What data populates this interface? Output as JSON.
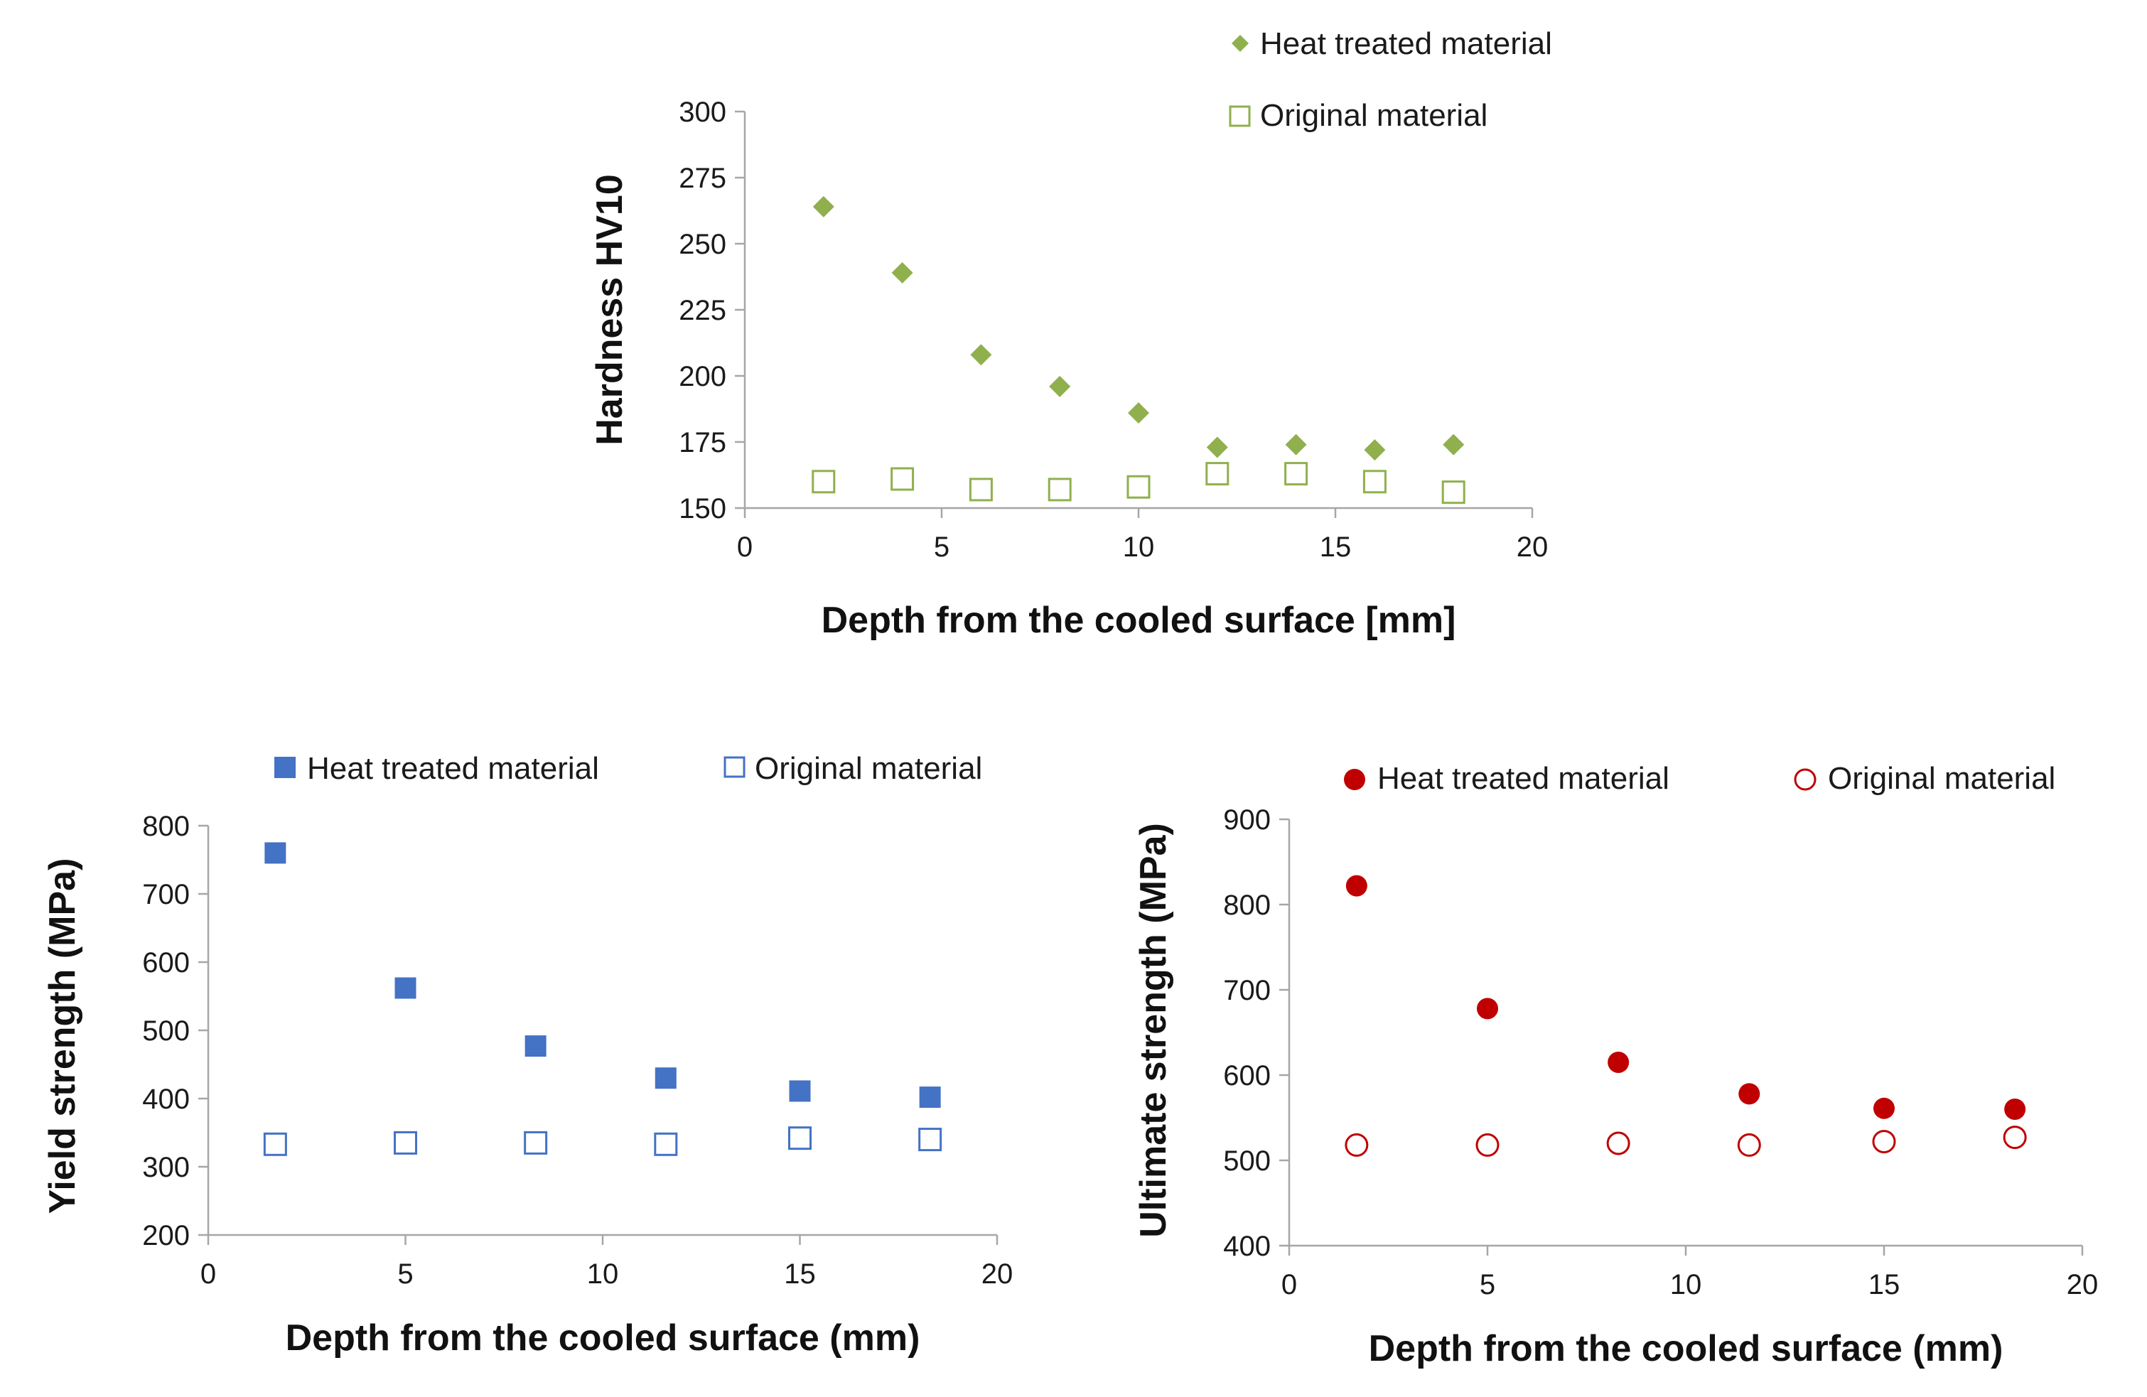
{
  "chart_data": [
    {
      "id": "hardness",
      "type": "scatter",
      "xlabel": "Depth from the cooled surface [mm]",
      "ylabel": "Hardness HV10",
      "xlim": [
        0,
        20
      ],
      "ylim": [
        150,
        300
      ],
      "xticks": [
        "0",
        "5",
        "10",
        "15",
        "20"
      ],
      "yticks": [
        "150",
        "175",
        "200",
        "225",
        "250",
        "275",
        "300"
      ],
      "grid": false,
      "legend_position": "top-right",
      "series": [
        {
          "name": "Heat treated material",
          "marker": "diamond",
          "filled": true,
          "color": "#8fb04d",
          "x": [
            2,
            4,
            6,
            8,
            10,
            12,
            14,
            16,
            18
          ],
          "y": [
            264,
            239,
            208,
            196,
            186,
            173,
            174,
            172,
            174
          ]
        },
        {
          "name": "Original material",
          "marker": "square",
          "filled": false,
          "color": "#8fb04d",
          "x": [
            2,
            4,
            6,
            8,
            10,
            12,
            14,
            16,
            18
          ],
          "y": [
            160,
            161,
            157,
            157,
            158,
            163,
            163,
            160,
            156
          ]
        }
      ]
    },
    {
      "id": "yield",
      "type": "scatter",
      "xlabel": "Depth from the cooled surface (mm)",
      "ylabel": "Yield strength (MPa)",
      "xlim": [
        0,
        20
      ],
      "ylim": [
        200,
        800
      ],
      "xticks": [
        "0",
        "5",
        "10",
        "15",
        "20"
      ],
      "yticks": [
        "200",
        "300",
        "400",
        "500",
        "600",
        "700",
        "800"
      ],
      "grid": false,
      "legend_position": "top",
      "series": [
        {
          "name": "Heat treated material",
          "marker": "square",
          "filled": true,
          "color": "#4472c4",
          "x": [
            1.7,
            5.0,
            8.3,
            11.6,
            15.0,
            18.3
          ],
          "y": [
            760,
            562,
            477,
            430,
            411,
            402
          ]
        },
        {
          "name": "Original material",
          "marker": "square",
          "filled": false,
          "color": "#4472c4",
          "x": [
            1.7,
            5.0,
            8.3,
            11.6,
            15.0,
            18.3
          ],
          "y": [
            333,
            335,
            335,
            333,
            342,
            340
          ]
        }
      ]
    },
    {
      "id": "ultimate",
      "type": "scatter",
      "xlabel": "Depth from the cooled surface (mm)",
      "ylabel": "Ultimate strength (MPa)",
      "xlim": [
        0,
        20
      ],
      "ylim": [
        400,
        900
      ],
      "xticks": [
        "0",
        "5",
        "10",
        "15",
        "20"
      ],
      "yticks": [
        "400",
        "500",
        "600",
        "700",
        "800",
        "900"
      ],
      "grid": false,
      "legend_position": "top",
      "series": [
        {
          "name": "Heat treated material",
          "marker": "circle",
          "filled": true,
          "color": "#c00000",
          "x": [
            1.7,
            5.0,
            8.3,
            11.6,
            15.0,
            18.3
          ],
          "y": [
            822,
            678,
            615,
            578,
            561,
            560
          ]
        },
        {
          "name": "Original material",
          "marker": "circle",
          "filled": false,
          "color": "#c00000",
          "x": [
            1.7,
            5.0,
            8.3,
            11.6,
            15.0,
            18.3
          ],
          "y": [
            518,
            518,
            520,
            518,
            522,
            527
          ]
        }
      ]
    }
  ]
}
